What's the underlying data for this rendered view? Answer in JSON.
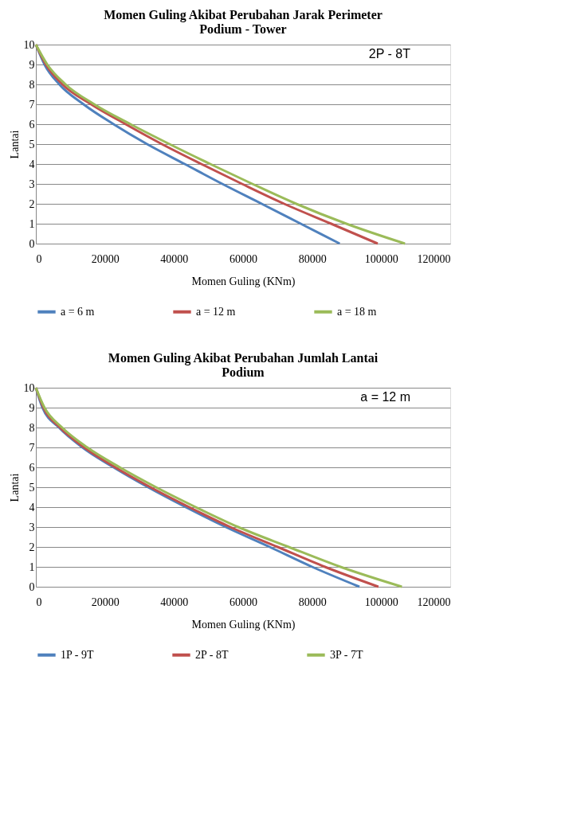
{
  "chart_data": [
    {
      "type": "line",
      "title": "Momen Guling Akibat Perubahan Jarak Perimeter Podium - Tower",
      "xlabel": "Momen Guling (KNm)",
      "ylabel": "Lantai",
      "annotations": [
        "2P - 8T"
      ],
      "xlim": [
        0,
        120000
      ],
      "xticks": [
        0,
        20000,
        40000,
        60000,
        80000,
        100000,
        120000
      ],
      "ylim": [
        0,
        10
      ],
      "yticks": [
        0,
        1,
        2,
        3,
        4,
        5,
        6,
        7,
        8,
        9,
        10
      ],
      "grid": "y",
      "legend": "bottom",
      "marker": "none",
      "line_style": "solid",
      "series": [
        {
          "name": "a = 6 m",
          "color": "#4f81bd",
          "x": [
            88000,
            76700,
            65400,
            54000,
            43100,
            32200,
            22500,
            13800,
            6800,
            2500,
            0
          ],
          "values": [
            0,
            1,
            2,
            3,
            4,
            5,
            6,
            7,
            8,
            9,
            10
          ]
        },
        {
          "name": "a = 12 m",
          "color": "#c0504d",
          "x": [
            99000,
            85500,
            71900,
            59700,
            47900,
            36500,
            26000,
            16000,
            7700,
            2900,
            0
          ],
          "values": [
            0,
            1,
            2,
            3,
            4,
            5,
            6,
            7,
            8,
            9,
            10
          ]
        },
        {
          "name": "a = 18 m",
          "color": "#9bbb59",
          "x": [
            106900,
            89900,
            75400,
            62700,
            50500,
            38700,
            27400,
            16900,
            8600,
            3300,
            0
          ],
          "values": [
            0,
            1,
            2,
            3,
            4,
            5,
            6,
            7,
            8,
            9,
            10
          ]
        }
      ]
    },
    {
      "type": "line",
      "title": "Momen Guling Akibat Perubahan Jumlah Lantai Podium",
      "xlabel": "Momen Guling (KNm)",
      "ylabel": "Lantai",
      "annotations": [
        "a = 12 m"
      ],
      "xlim": [
        0,
        120000
      ],
      "xticks": [
        0,
        20000,
        40000,
        60000,
        80000,
        100000,
        120000
      ],
      "ylim": [
        0,
        10
      ],
      "yticks": [
        0,
        1,
        2,
        3,
        4,
        5,
        6,
        7,
        8,
        9,
        10
      ],
      "grid": "y",
      "legend": "bottom",
      "marker": "none",
      "line_style": "solid",
      "series": [
        {
          "name": "1P - 9T",
          "color": "#4f81bd",
          "x": [
            93700,
            80000,
            67700,
            55000,
            43400,
            32500,
            22500,
            13500,
            6700,
            1900,
            0
          ],
          "values": [
            0,
            1,
            2,
            3,
            4,
            5,
            6,
            7,
            8,
            9,
            10
          ]
        },
        {
          "name": "2P - 8T",
          "color": "#c0504d",
          "x": [
            99200,
            83700,
            70000,
            56300,
            44400,
            33200,
            23000,
            14000,
            7000,
            2200,
            0
          ],
          "values": [
            0,
            1,
            2,
            3,
            4,
            5,
            6,
            7,
            8,
            9,
            10
          ]
        },
        {
          "name": "3P - 7T",
          "color": "#9bbb59",
          "x": [
            106000,
            88200,
            73200,
            58600,
            46300,
            34800,
            24300,
            14900,
            7600,
            2500,
            0
          ],
          "values": [
            0,
            1,
            2,
            3,
            4,
            5,
            6,
            7,
            8,
            9,
            10
          ]
        }
      ]
    }
  ]
}
